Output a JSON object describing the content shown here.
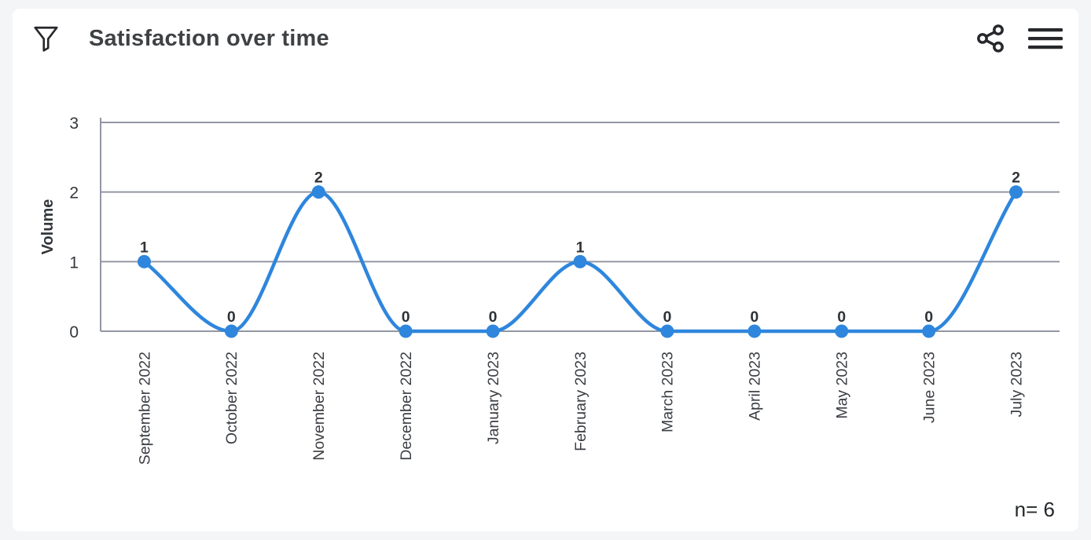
{
  "header": {
    "title": "Satisfaction over time",
    "filter_icon": "filter-funnel",
    "share_icon": "share",
    "menu_icon": "hamburger-menu"
  },
  "chart_data": {
    "type": "line",
    "title": "Satisfaction over time",
    "categories": [
      "September 2022",
      "October 2022",
      "November 2022",
      "December 2022",
      "January 2023",
      "February 2023",
      "March 2023",
      "April 2023",
      "May 2023",
      "June 2023",
      "July 2023"
    ],
    "series": [
      {
        "name": "Volume",
        "values": [
          1,
          0,
          2,
          0,
          0,
          1,
          0,
          0,
          0,
          0,
          2
        ]
      }
    ],
    "xlabel": "",
    "ylabel": "Volume",
    "ylim": [
      0,
      3
    ],
    "yticks": [
      0,
      1,
      2,
      3
    ],
    "grid": true,
    "smooth": true,
    "point_labels": true,
    "legend": "none",
    "annotation": "n= 6",
    "colors": {
      "line": "#2E86DD",
      "point": "#2E86DD",
      "grid": "#9396A3",
      "axis_text": "#33373B",
      "point_label": "#2F3337"
    }
  },
  "footer": {
    "sample_size_label": "n= 6"
  }
}
